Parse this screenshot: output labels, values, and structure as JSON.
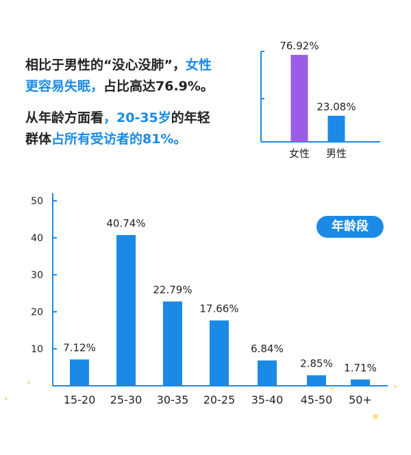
{
  "intro": {
    "line1_a": "相比于男性的“没心没肺”，",
    "line1_b": "女性",
    "line2_a": "更容易失眠，",
    "line2_b": "占比高达76.9%。",
    "line3_a": "从年龄方面看",
    "line3_b": "，20-35岁",
    "line3_c": "的年轻",
    "line4_a": "群体",
    "line4_b": "占所有受访者的81%。"
  },
  "colors": {
    "accent": "#1a8ae6",
    "female": "#9b5de5",
    "text": "#222222"
  },
  "chart_data": [
    {
      "type": "bar",
      "title": "",
      "categories": [
        "女性",
        "男性"
      ],
      "values": [
        76.92,
        23.08
      ],
      "labels": [
        "76.92%",
        "23.08%"
      ],
      "bar_colors": [
        "#9b5de5",
        "#1a8ae6"
      ],
      "ylim": [
        0,
        100
      ]
    },
    {
      "type": "bar",
      "title": "年龄段",
      "categories": [
        "15-20",
        "25-30",
        "30-35",
        "20-25",
        "35-40",
        "45-50",
        "50+"
      ],
      "values": [
        7.12,
        40.74,
        22.79,
        17.66,
        6.84,
        2.85,
        1.71
      ],
      "labels": [
        "7.12%",
        "40.74%",
        "22.79%",
        "17.66%",
        "6.84%",
        "2.85%",
        "1.71%"
      ],
      "ylim": [
        0,
        50
      ],
      "yticks": [
        10,
        20,
        30,
        40,
        50
      ]
    }
  ]
}
